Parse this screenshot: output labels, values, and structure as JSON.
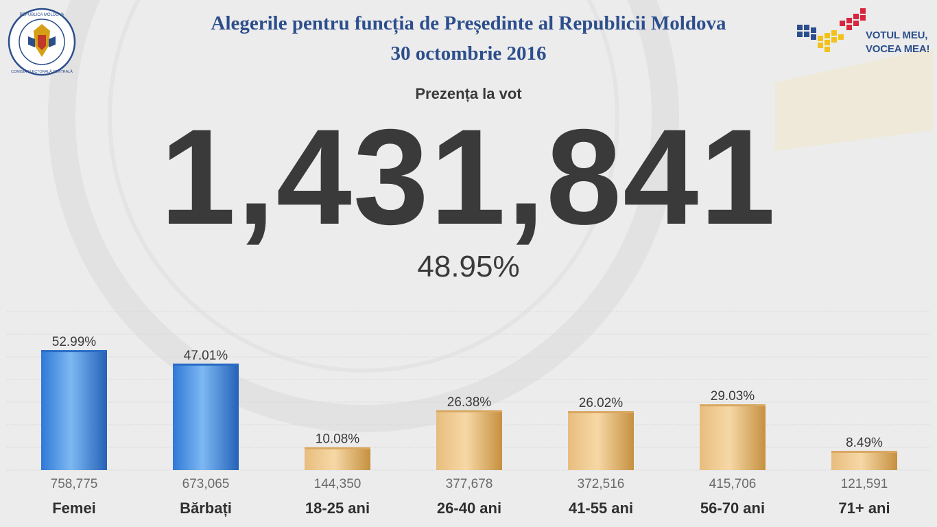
{
  "header": {
    "title_line1": "Alegerile pentru funcția de Președinte al Republicii Moldova",
    "title_line2": "30 octombrie 2016",
    "seal_text_top": "REPUBLICA MOLDOVA",
    "seal_text_bottom": "COMISIA ELECTORALĂ CENTRALĂ",
    "brand_line1": "VOTUL MEU,",
    "brand_line2": "VOCEA MEA!"
  },
  "turnout": {
    "label": "Prezența la vot",
    "total": "1,431,841",
    "percent": "48.95%"
  },
  "colors": {
    "title": "#2c4e8c",
    "blue_bar": "#4a90e2",
    "gold_bar": "#e6b877",
    "text": "#3a3a3a"
  },
  "chart_data": {
    "type": "bar",
    "categories": [
      "Femei",
      "Bărbați",
      "18-25 ani",
      "26-40 ani",
      "41-55 ani",
      "56-70 ani",
      "71+ ani"
    ],
    "values": [
      52.99,
      47.01,
      10.08,
      26.38,
      26.02,
      29.03,
      8.49
    ],
    "value_labels": [
      "52.99%",
      "47.01%",
      "10.08%",
      "26.38%",
      "26.02%",
      "29.03%",
      "8.49%"
    ],
    "counts": [
      "758,775",
      "673,065",
      "144,350",
      "377,678",
      "372,516",
      "415,706",
      "121,591"
    ],
    "groups": [
      "gender",
      "gender",
      "age",
      "age",
      "age",
      "age",
      "age"
    ],
    "ylim": [
      0,
      70
    ],
    "grid": true,
    "xlabel": "",
    "ylabel": ""
  }
}
